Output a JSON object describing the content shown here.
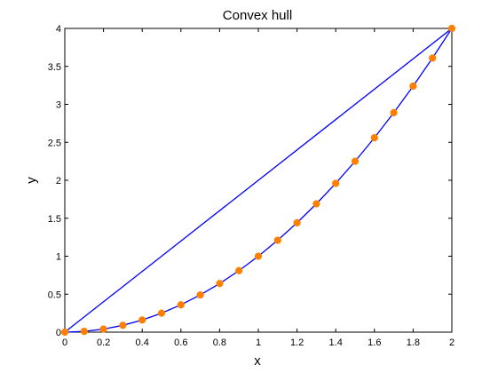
{
  "chart_data": {
    "type": "line",
    "title": "Convex hull",
    "xlabel": "x",
    "ylabel": "y",
    "xlim": [
      0,
      2
    ],
    "ylim": [
      0,
      4
    ],
    "xticks": [
      "0",
      "0.2",
      "0.4",
      "0.6",
      "0.8",
      "1",
      "1.2",
      "1.4",
      "1.6",
      "1.8",
      "2"
    ],
    "yticks": [
      "0",
      "0.5",
      "1",
      "1.5",
      "2",
      "2.5",
      "3",
      "3.5",
      "4"
    ],
    "grid": false,
    "legend": "none",
    "series": [
      {
        "type": "scatter",
        "color": "#ff8000",
        "x": [
          0,
          0.1,
          0.2,
          0.3,
          0.4,
          0.5,
          0.6,
          0.7,
          0.8,
          0.9,
          1.0,
          1.1,
          1.2,
          1.3,
          1.4,
          1.5,
          1.6,
          1.7,
          1.8,
          1.9,
          2.0
        ],
        "y": [
          0,
          0.01,
          0.04,
          0.09,
          0.16,
          0.25,
          0.36,
          0.49,
          0.64,
          0.81,
          1.0,
          1.21,
          1.44,
          1.69,
          1.96,
          2.25,
          2.56,
          2.89,
          3.24,
          3.61,
          4.0
        ]
      },
      {
        "type": "line",
        "color": "#0000ff",
        "x": [
          0,
          0.1,
          0.2,
          0.3,
          0.4,
          0.5,
          0.6,
          0.7,
          0.8,
          0.9,
          1.0,
          1.1,
          1.2,
          1.3,
          1.4,
          1.5,
          1.6,
          1.7,
          1.8,
          1.9,
          2.0,
          0
        ],
        "y": [
          0,
          0.01,
          0.04,
          0.09,
          0.16,
          0.25,
          0.36,
          0.49,
          0.64,
          0.81,
          1.0,
          1.21,
          1.44,
          1.69,
          1.96,
          2.25,
          2.56,
          2.89,
          3.24,
          3.61,
          4.0,
          0
        ]
      }
    ]
  }
}
